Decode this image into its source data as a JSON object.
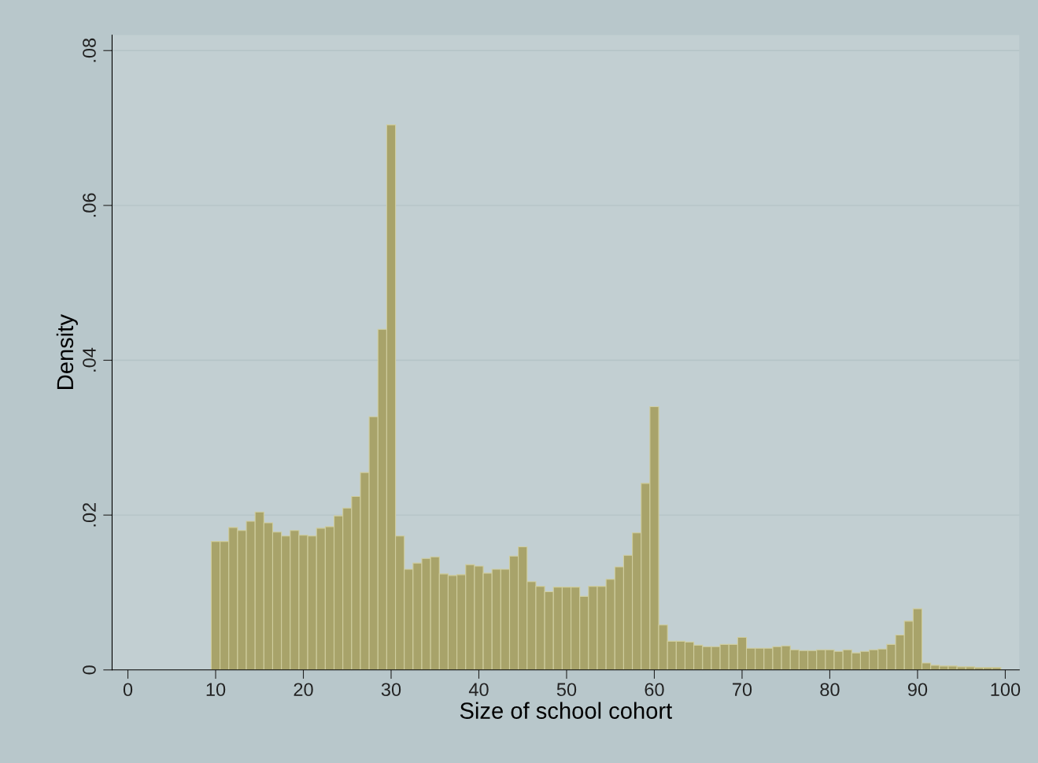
{
  "chart_data": {
    "type": "histogram",
    "xlabel": "Size of school cohort",
    "ylabel": "Density",
    "color": "#a8a36a",
    "bins": [
      9.5,
      10.5,
      11.5,
      12.5,
      13.5,
      14.5,
      15.5,
      16.5,
      17.5,
      18.5,
      19.5,
      20.5,
      21.5,
      22.5,
      23.5,
      24.5,
      25.5,
      26.5,
      27.5,
      28.5,
      29.5,
      30.5,
      31.5,
      32.5,
      33.5,
      34.5,
      35.5,
      36.5,
      37.5,
      38.5,
      39.5,
      40.5,
      41.5,
      42.5,
      43.5,
      44.5,
      45.5,
      46.5,
      47.5,
      48.5,
      49.5,
      50.5,
      51.5,
      52.5,
      53.5,
      54.5,
      55.5,
      56.5,
      57.5,
      58.5,
      59.5,
      60.5,
      61.5,
      62.5,
      63.5,
      64.5,
      65.5,
      66.5,
      67.5,
      68.5,
      69.5,
      70.5,
      71.5,
      72.5,
      73.5,
      74.5,
      75.5,
      76.5,
      77.5,
      78.5,
      79.5,
      80.5,
      81.5,
      82.5,
      83.5,
      84.5,
      85.5,
      86.5,
      87.5,
      88.5,
      89.5,
      90.5,
      91.5,
      92.5,
      93.5,
      94.5,
      95.5,
      96.5,
      97.5,
      98.5,
      99.5
    ],
    "values": [
      0.0166,
      0.0166,
      0.0184,
      0.018,
      0.0192,
      0.0204,
      0.019,
      0.0178,
      0.0173,
      0.018,
      0.0174,
      0.0173,
      0.0183,
      0.0185,
      0.0199,
      0.0209,
      0.0224,
      0.0255,
      0.0327,
      0.044,
      0.0704,
      0.0173,
      0.013,
      0.0138,
      0.0144,
      0.0146,
      0.0124,
      0.0122,
      0.0123,
      0.0136,
      0.0134,
      0.0125,
      0.013,
      0.013,
      0.0147,
      0.0159,
      0.0114,
      0.0108,
      0.0101,
      0.0107,
      0.0107,
      0.0107,
      0.0095,
      0.0108,
      0.0108,
      0.0117,
      0.0133,
      0.0148,
      0.0177,
      0.0241,
      0.034,
      0.0058,
      0.0037,
      0.0037,
      0.0036,
      0.0032,
      0.003,
      0.003,
      0.0033,
      0.0033,
      0.0042,
      0.0028,
      0.0028,
      0.0028,
      0.003,
      0.0031,
      0.0026,
      0.0025,
      0.0025,
      0.0026,
      0.0026,
      0.0024,
      0.0026,
      0.0022,
      0.0024,
      0.0026,
      0.0027,
      0.0033,
      0.0045,
      0.0063,
      0.0079,
      0.0009,
      0.0006,
      0.0005,
      0.0005,
      0.0004,
      0.0004,
      0.0003,
      0.0003,
      0.0003
    ],
    "xlim": [
      -1.8,
      101.6
    ],
    "xticks": [
      0,
      10,
      20,
      30,
      40,
      50,
      60,
      70,
      80,
      90,
      100
    ],
    "ylim": [
      0,
      0.082
    ],
    "yticks": [
      0,
      {
        "value": 0.02,
        "label": ".02"
      },
      {
        "value": 0.04,
        "label": ".04"
      },
      {
        "value": 0.06,
        "label": ".06"
      },
      {
        "value": 0.08,
        "label": ".08"
      }
    ],
    "grid": "y"
  }
}
